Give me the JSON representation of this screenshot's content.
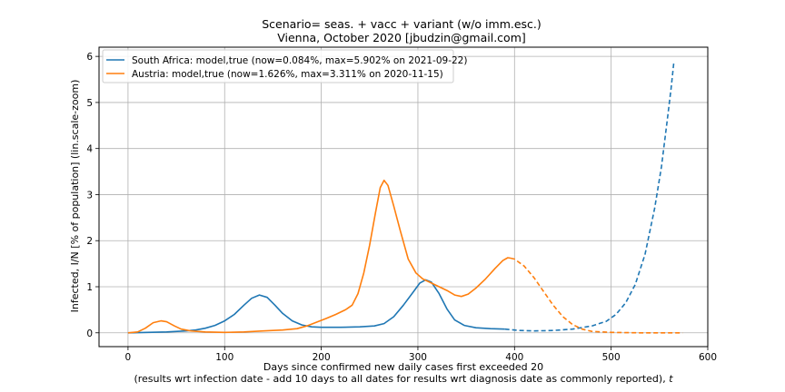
{
  "chart_data": {
    "type": "line",
    "title": "Scenario= seas. + vacc + variant (w/o imm.esc.)",
    "subtitle": "Vienna, October 2020 [jbudzin@gmail.com]",
    "xlabel": "Days since confirmed new daily cases first exceeded 20",
    "xlabel_note": "(results wrt infection date - add 10 days to all dates for results wrt diagnosis date as commonly reported), ",
    "xlabel_note_var": "t",
    "ylabel": "Infected, I/N [% of population] (lin.scale-zoom)",
    "xlim": [
      -30,
      600
    ],
    "ylim": [
      -0.3,
      6.2
    ],
    "xticks": [
      0,
      100,
      200,
      300,
      400,
      500,
      600
    ],
    "yticks": [
      0,
      1,
      2,
      3,
      4,
      5,
      6
    ],
    "grid": true,
    "legend_position": "upper-left",
    "series": [
      {
        "name": "South Africa: model,true (now=0.084%, max=5.902% on 2021-09-22)",
        "color": "#1f77b4",
        "split_x": 390,
        "points": [
          [
            0,
            0
          ],
          [
            20,
            0.01
          ],
          [
            40,
            0.02
          ],
          [
            60,
            0.04
          ],
          [
            70,
            0.06
          ],
          [
            80,
            0.1
          ],
          [
            90,
            0.16
          ],
          [
            100,
            0.26
          ],
          [
            110,
            0.4
          ],
          [
            120,
            0.6
          ],
          [
            128,
            0.75
          ],
          [
            136,
            0.82
          ],
          [
            144,
            0.77
          ],
          [
            152,
            0.6
          ],
          [
            160,
            0.42
          ],
          [
            170,
            0.26
          ],
          [
            180,
            0.17
          ],
          [
            190,
            0.13
          ],
          [
            200,
            0.12
          ],
          [
            220,
            0.12
          ],
          [
            240,
            0.13
          ],
          [
            255,
            0.15
          ],
          [
            265,
            0.2
          ],
          [
            275,
            0.35
          ],
          [
            285,
            0.6
          ],
          [
            295,
            0.88
          ],
          [
            302,
            1.08
          ],
          [
            308,
            1.15
          ],
          [
            314,
            1.1
          ],
          [
            322,
            0.85
          ],
          [
            330,
            0.52
          ],
          [
            338,
            0.28
          ],
          [
            348,
            0.16
          ],
          [
            360,
            0.11
          ],
          [
            375,
            0.09
          ],
          [
            390,
            0.08
          ],
          [
            405,
            0.05
          ],
          [
            420,
            0.04
          ],
          [
            440,
            0.05
          ],
          [
            460,
            0.08
          ],
          [
            480,
            0.15
          ],
          [
            495,
            0.25
          ],
          [
            505,
            0.4
          ],
          [
            515,
            0.65
          ],
          [
            525,
            1.05
          ],
          [
            535,
            1.7
          ],
          [
            545,
            2.7
          ],
          [
            552,
            3.6
          ],
          [
            558,
            4.6
          ],
          [
            562,
            5.3
          ],
          [
            565,
            5.9
          ]
        ]
      },
      {
        "name": "Austria: model,true (now=1.626%, max=3.311% on 2020-11-15)",
        "color": "#ff7f0e",
        "split_x": 396,
        "points": [
          [
            0,
            0
          ],
          [
            10,
            0.02
          ],
          [
            18,
            0.1
          ],
          [
            26,
            0.22
          ],
          [
            34,
            0.26
          ],
          [
            40,
            0.24
          ],
          [
            48,
            0.15
          ],
          [
            55,
            0.08
          ],
          [
            65,
            0.04
          ],
          [
            80,
            0.02
          ],
          [
            100,
            0.01
          ],
          [
            120,
            0.02
          ],
          [
            140,
            0.04
          ],
          [
            160,
            0.06
          ],
          [
            175,
            0.09
          ],
          [
            185,
            0.15
          ],
          [
            195,
            0.23
          ],
          [
            205,
            0.31
          ],
          [
            215,
            0.4
          ],
          [
            225,
            0.5
          ],
          [
            232,
            0.6
          ],
          [
            238,
            0.85
          ],
          [
            244,
            1.3
          ],
          [
            250,
            1.9
          ],
          [
            256,
            2.6
          ],
          [
            261,
            3.15
          ],
          [
            265,
            3.31
          ],
          [
            269,
            3.2
          ],
          [
            275,
            2.75
          ],
          [
            282,
            2.2
          ],
          [
            290,
            1.6
          ],
          [
            298,
            1.3
          ],
          [
            305,
            1.17
          ],
          [
            312,
            1.1
          ],
          [
            320,
            1.02
          ],
          [
            330,
            0.92
          ],
          [
            338,
            0.82
          ],
          [
            345,
            0.79
          ],
          [
            352,
            0.84
          ],
          [
            360,
            0.97
          ],
          [
            370,
            1.17
          ],
          [
            380,
            1.4
          ],
          [
            388,
            1.57
          ],
          [
            393,
            1.63
          ],
          [
            396,
            1.62
          ],
          [
            400,
            1.6
          ],
          [
            410,
            1.45
          ],
          [
            420,
            1.2
          ],
          [
            430,
            0.9
          ],
          [
            440,
            0.6
          ],
          [
            450,
            0.35
          ],
          [
            460,
            0.18
          ],
          [
            470,
            0.08
          ],
          [
            480,
            0.03
          ],
          [
            500,
            0.01
          ],
          [
            530,
            0.0
          ],
          [
            574,
            0.0
          ]
        ]
      }
    ]
  }
}
